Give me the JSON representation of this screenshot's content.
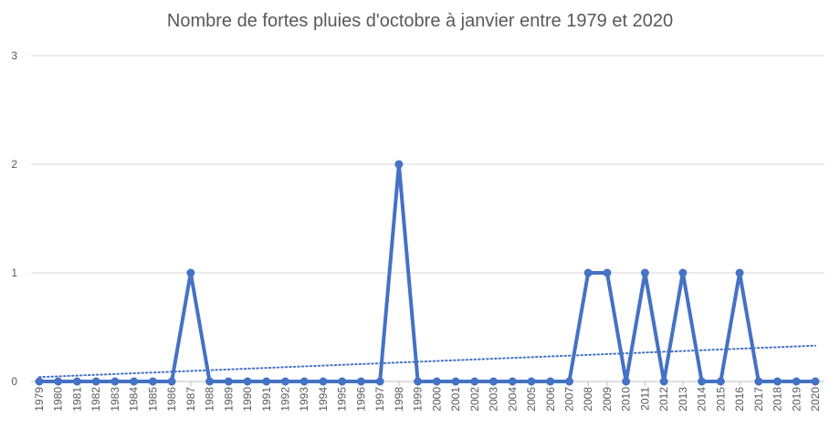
{
  "chart_data": {
    "type": "line",
    "title": "Nombre de fortes pluies d'octobre à janvier entre 1979 et 2020",
    "xlabel": "",
    "ylabel": "",
    "ylim": [
      0,
      3
    ],
    "yticks": [
      "0",
      "1",
      "2",
      "3"
    ],
    "grid": true,
    "legend": "none",
    "categories": [
      "1979",
      "1980",
      "1981",
      "1982",
      "1983",
      "1984",
      "1985",
      "1986",
      "1987",
      "1988",
      "1989",
      "1990",
      "1991",
      "1992",
      "1993",
      "1994",
      "1995",
      "1996",
      "1997",
      "1998",
      "1999",
      "2000",
      "2001",
      "2002",
      "2003",
      "2004",
      "2005",
      "2006",
      "2007",
      "2008",
      "2009",
      "2010",
      "2011",
      "2012",
      "2013",
      "2014",
      "2015",
      "2016",
      "2017",
      "2018",
      "2019",
      "2020"
    ],
    "series": [
      {
        "values": [
          0,
          0,
          0,
          0,
          0,
          0,
          0,
          0,
          1,
          0,
          0,
          0,
          0,
          0,
          0,
          0,
          0,
          0,
          0,
          2,
          0,
          0,
          0,
          0,
          0,
          0,
          0,
          0,
          0,
          1,
          1,
          0,
          1,
          0,
          1,
          0,
          0,
          1,
          0,
          0,
          0,
          0
        ],
        "color": "#4472C4"
      }
    ],
    "trendline": {
      "type": "linear",
      "style": "dotted",
      "color": "#4472C4",
      "start_value": 0.04,
      "end_value": 0.33
    }
  }
}
